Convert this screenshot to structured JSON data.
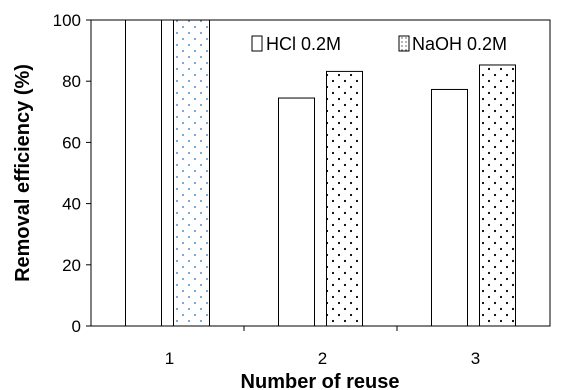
{
  "chart_data": {
    "type": "bar",
    "title": "",
    "xlabel": "Number of reuse",
    "ylabel": "Removal efficiency (%)",
    "categories": [
      "1",
      "2",
      "3"
    ],
    "ylim": [
      0,
      100
    ],
    "yticks": [
      "0",
      "20",
      "40",
      "60",
      "80",
      "100"
    ],
    "grid": false,
    "legend_position": "top-right",
    "series": [
      {
        "name": "HCl 0.2M",
        "values": [
          100,
          74.5,
          77.3
        ],
        "fill": "#ffffff",
        "pattern": "none"
      },
      {
        "name": "NaOH 0.2M",
        "values": [
          100,
          83.2,
          85.3
        ],
        "fill": "#ffffff",
        "pattern": "dots"
      }
    ]
  }
}
